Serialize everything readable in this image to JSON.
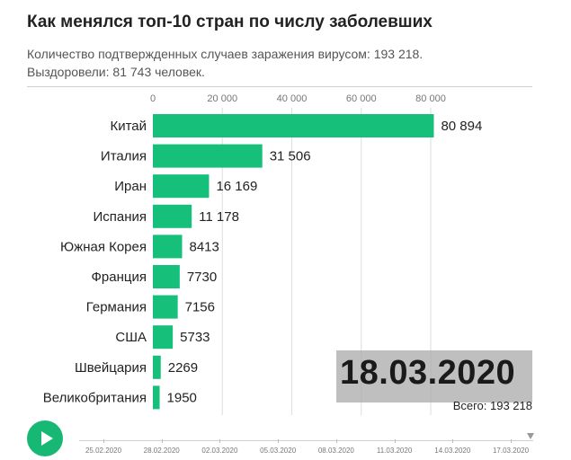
{
  "title": "Как менялся топ-10 стран по числу заболевших",
  "subtitle_line1": "Количество подтвержденных случаев заражения вирусом: 193 218.",
  "subtitle_line2": "Выздоровели: 81 743 человек.",
  "current_date": "18.03.2020",
  "total_text": "Всего: 193 218",
  "colors": {
    "bar": "#16bf7a",
    "play": "#16b873"
  },
  "timeline": {
    "dates": [
      "25.02.2020",
      "28.02.2020",
      "02.03.2020",
      "05.03.2020",
      "08.03.2020",
      "11.03.2020",
      "14.03.2020",
      "17.03.2020"
    ]
  },
  "chart_data": {
    "type": "bar",
    "orientation": "horizontal",
    "title": "Как менялся топ-10 стран по числу заболевших",
    "xlim": [
      0,
      80000
    ],
    "x_ticks": [
      0,
      20000,
      40000,
      60000,
      80000
    ],
    "x_tick_labels": [
      "0",
      "20 000",
      "40 000",
      "60 000",
      "80 000"
    ],
    "categories": [
      "Китай",
      "Италия",
      "Иран",
      "Испания",
      "Южная Корея",
      "Франция",
      "Германия",
      "США",
      "Швейцария",
      "Великобритания"
    ],
    "values": [
      80894,
      31506,
      16169,
      11178,
      8413,
      7730,
      7156,
      5733,
      2269,
      1950
    ],
    "value_labels": [
      "80 894",
      "31 506",
      "16 169",
      "11 178",
      "8413",
      "7730",
      "7156",
      "5733",
      "2269",
      "1950"
    ],
    "grid": true
  }
}
